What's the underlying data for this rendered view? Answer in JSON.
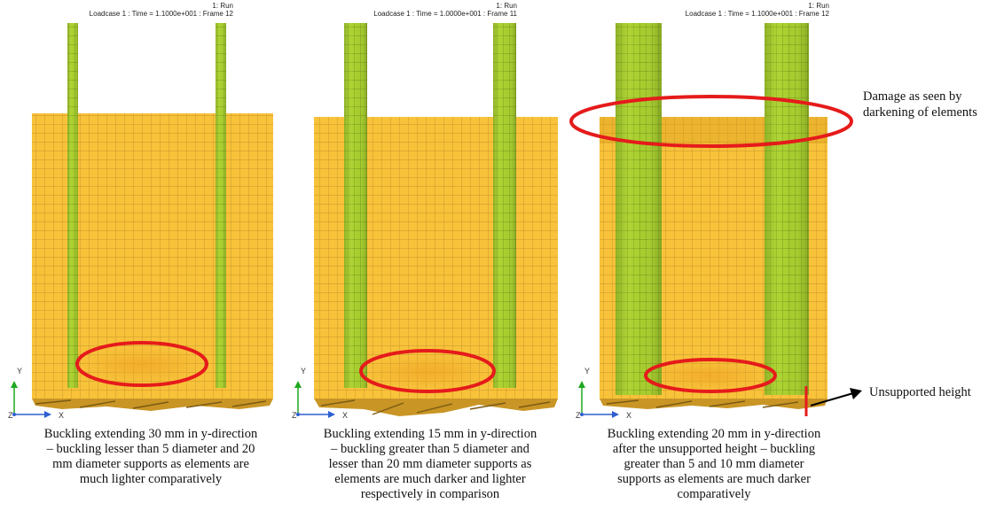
{
  "panels": [
    {
      "header": {
        "run": "1: Run",
        "loadcase": "Loadcase 1 : Time = 1.1000e+001 : Frame 12"
      },
      "caption": [
        "Buckling extending 30 mm in y-direction",
        "– buckling lesser than 5 diameter and 20",
        "mm diameter supports as elements are",
        "much lighter comparatively"
      ],
      "axes": {
        "y": "Y",
        "z": "Z",
        "x": "X"
      }
    },
    {
      "header": {
        "run": "1: Run",
        "loadcase": "Loadcase 1 : Time = 1.0000e+001 : Frame 11"
      },
      "caption": [
        "Buckling extending 15 mm in y-direction",
        "– buckling greater than 5 diameter and",
        "lesser than 20 mm diameter supports as",
        "elements are much darker and lighter",
        "respectively in comparison"
      ],
      "axes": {
        "y": "Y",
        "z": "Z",
        "x": "X"
      }
    },
    {
      "header": {
        "run": "1: Run",
        "loadcase": "Loadcase 1 : Time = 1.1000e+001 : Frame 12"
      },
      "caption": [
        "Buckling extending 20 mm in y-direction",
        "after the unsupported height – buckling",
        "greater than 5 and 10 mm diameter",
        "supports as elements are much darker",
        "comparatively"
      ],
      "axes": {
        "y": "Y",
        "z": "Z",
        "x": "X"
      }
    }
  ],
  "annotations": {
    "damage": [
      "Damage as seen by",
      "darkening of elements"
    ],
    "unsupported": "Unsupported height"
  },
  "colors": {
    "panel_fill": "#F8C23A",
    "panel_grid": "#C7962A",
    "support_fill": "#A6CC2E",
    "support_grid": "#5E7A16",
    "damage_glow": "#F0A526",
    "marker": "#E51B1B",
    "axis_y": "#1FA81F",
    "axis_x": "#2F5FD0"
  }
}
